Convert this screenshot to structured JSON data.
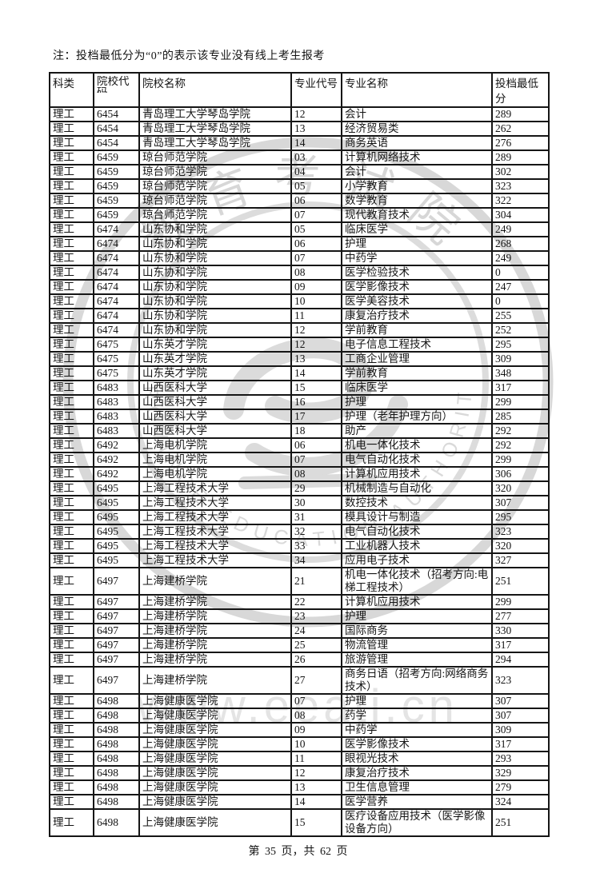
{
  "note": "注：投档最低分为“0”的表示该专业没有线上考生报考",
  "table": {
    "headers": [
      "科类",
      "院校代码",
      "院校名称",
      "专业代号",
      "专业名称",
      "投档最低分"
    ],
    "rows": [
      [
        "理工",
        "6454",
        "青岛理工大学琴岛学院",
        "12",
        "会计",
        "289"
      ],
      [
        "理工",
        "6454",
        "青岛理工大学琴岛学院",
        "13",
        "经济贸易类",
        "262"
      ],
      [
        "理工",
        "6454",
        "青岛理工大学琴岛学院",
        "14",
        "商务英语",
        "276"
      ],
      [
        "理工",
        "6459",
        "琼台师范学院",
        "03",
        "计算机网络技术",
        "289"
      ],
      [
        "理工",
        "6459",
        "琼台师范学院",
        "04",
        "会计",
        "302"
      ],
      [
        "理工",
        "6459",
        "琼台师范学院",
        "05",
        "小学教育",
        "323"
      ],
      [
        "理工",
        "6459",
        "琼台师范学院",
        "06",
        "数学教育",
        "322"
      ],
      [
        "理工",
        "6459",
        "琼台师范学院",
        "07",
        "现代教育技术",
        "304"
      ],
      [
        "理工",
        "6474",
        "山东协和学院",
        "05",
        "临床医学",
        "249"
      ],
      [
        "理工",
        "6474",
        "山东协和学院",
        "06",
        "护理",
        "268"
      ],
      [
        "理工",
        "6474",
        "山东协和学院",
        "07",
        "中药学",
        "249"
      ],
      [
        "理工",
        "6474",
        "山东协和学院",
        "08",
        "医学检验技术",
        "0"
      ],
      [
        "理工",
        "6474",
        "山东协和学院",
        "09",
        "医学影像技术",
        "247"
      ],
      [
        "理工",
        "6474",
        "山东协和学院",
        "10",
        "医学美容技术",
        "0"
      ],
      [
        "理工",
        "6474",
        "山东协和学院",
        "11",
        "康复治疗技术",
        "255"
      ],
      [
        "理工",
        "6474",
        "山东协和学院",
        "12",
        "学前教育",
        "252"
      ],
      [
        "理工",
        "6475",
        "山东英才学院",
        "12",
        "电子信息工程技术",
        "295"
      ],
      [
        "理工",
        "6475",
        "山东英才学院",
        "13",
        "工商企业管理",
        "309"
      ],
      [
        "理工",
        "6475",
        "山东英才学院",
        "14",
        "学前教育",
        "348"
      ],
      [
        "理工",
        "6483",
        "山西医科大学",
        "15",
        "临床医学",
        "317"
      ],
      [
        "理工",
        "6483",
        "山西医科大学",
        "16",
        "护理",
        "299"
      ],
      [
        "理工",
        "6483",
        "山西医科大学",
        "17",
        "护理（老年护理方向）",
        "285"
      ],
      [
        "理工",
        "6483",
        "山西医科大学",
        "18",
        "助产",
        "292"
      ],
      [
        "理工",
        "6492",
        "上海电机学院",
        "06",
        "机电一体化技术",
        "292"
      ],
      [
        "理工",
        "6492",
        "上海电机学院",
        "07",
        "电气自动化技术",
        "299"
      ],
      [
        "理工",
        "6492",
        "上海电机学院",
        "08",
        "计算机应用技术",
        "306"
      ],
      [
        "理工",
        "6495",
        "上海工程技术大学",
        "29",
        "机械制造与自动化",
        "320"
      ],
      [
        "理工",
        "6495",
        "上海工程技术大学",
        "30",
        "数控技术",
        "307"
      ],
      [
        "理工",
        "6495",
        "上海工程技术大学",
        "31",
        "模具设计与制造",
        "295"
      ],
      [
        "理工",
        "6495",
        "上海工程技术大学",
        "32",
        "电气自动化技术",
        "323"
      ],
      [
        "理工",
        "6495",
        "上海工程技术大学",
        "33",
        "工业机器人技术",
        "320"
      ],
      [
        "理工",
        "6495",
        "上海工程技术大学",
        "34",
        "应用电子技术",
        "327"
      ],
      [
        "理工",
        "6497",
        "上海建桥学院",
        "21",
        "机电一体化技术（招考方向:电梯工程技术）",
        "251"
      ],
      [
        "理工",
        "6497",
        "上海建桥学院",
        "22",
        "计算机应用技术",
        "299"
      ],
      [
        "理工",
        "6497",
        "上海建桥学院",
        "23",
        "护理",
        "277"
      ],
      [
        "理工",
        "6497",
        "上海建桥学院",
        "24",
        "国际商务",
        "330"
      ],
      [
        "理工",
        "6497",
        "上海建桥学院",
        "25",
        "物流管理",
        "317"
      ],
      [
        "理工",
        "6497",
        "上海建桥学院",
        "26",
        "旅游管理",
        "294"
      ],
      [
        "理工",
        "6497",
        "上海建桥学院",
        "27",
        "商务日语（招考方向:网络商务技术）",
        "323"
      ],
      [
        "理工",
        "6498",
        "上海健康医学院",
        "07",
        "护理",
        "307"
      ],
      [
        "理工",
        "6498",
        "上海健康医学院",
        "08",
        "药学",
        "307"
      ],
      [
        "理工",
        "6498",
        "上海健康医学院",
        "09",
        "中药学",
        "309"
      ],
      [
        "理工",
        "6498",
        "上海健康医学院",
        "10",
        "医学影像技术",
        "317"
      ],
      [
        "理工",
        "6498",
        "上海健康医学院",
        "11",
        "眼视光技术",
        "293"
      ],
      [
        "理工",
        "6498",
        "上海健康医学院",
        "12",
        "康复治疗技术",
        "329"
      ],
      [
        "理工",
        "6498",
        "上海健康医学院",
        "13",
        "卫生信息管理",
        "279"
      ],
      [
        "理工",
        "6498",
        "上海健康医学院",
        "14",
        "医学营养",
        "324"
      ],
      [
        "理工",
        "6498",
        "上海健康医学院",
        "15",
        "医疗设备应用技术（医学影像设备方向）",
        "251"
      ]
    ]
  },
  "footer": {
    "page_info": "第 35 页，共 62 页"
  },
  "watermark": {
    "seal_top_text": "教育考试院",
    "seal_ring_text": "PROVINCE EDUCATION AUTHORITY",
    "url_text": "www.eeatj.cn",
    "color": "#d8d8d8"
  }
}
